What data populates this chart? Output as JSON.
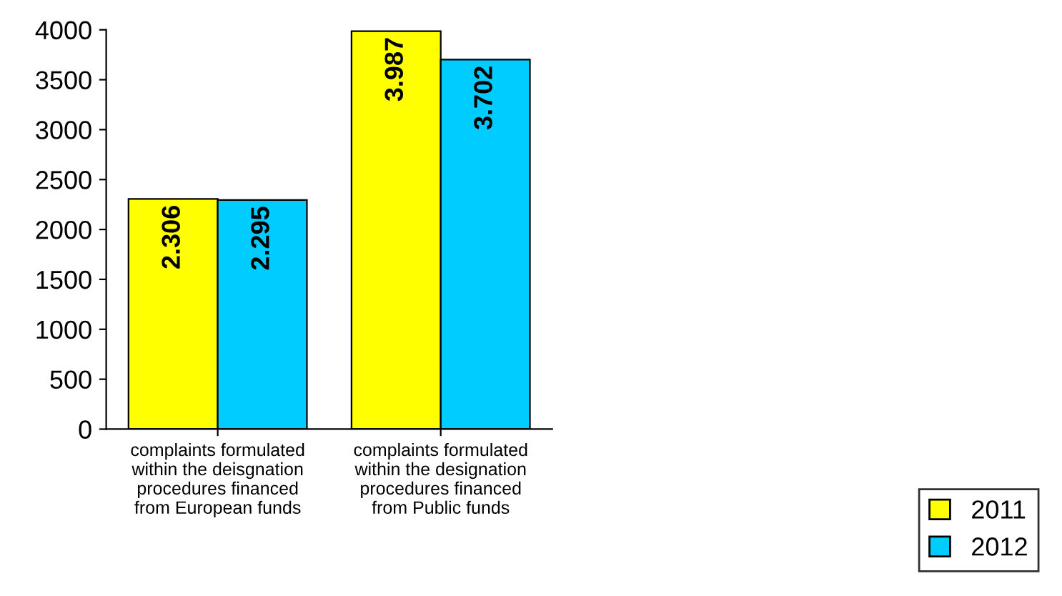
{
  "chart_data": {
    "type": "bar",
    "categories": [
      "complaints formulated within the deisgnation procedures financed from European funds",
      "complaints formulated within the designation procedures financed from Public funds"
    ],
    "series": [
      {
        "name": "2011",
        "color": "#ffff00",
        "values": [
          2306,
          3987
        ],
        "value_labels": [
          "2.306",
          "3.987"
        ]
      },
      {
        "name": "2012",
        "color": "#00ccff",
        "values": [
          2295,
          3702
        ],
        "value_labels": [
          "2.295",
          "3.702"
        ]
      }
    ],
    "ylim": [
      0,
      4000
    ],
    "yticks": [
      0,
      500,
      1000,
      1500,
      2000,
      2500,
      3000,
      3500,
      4000
    ],
    "grid": false,
    "legend": "bottom right"
  }
}
